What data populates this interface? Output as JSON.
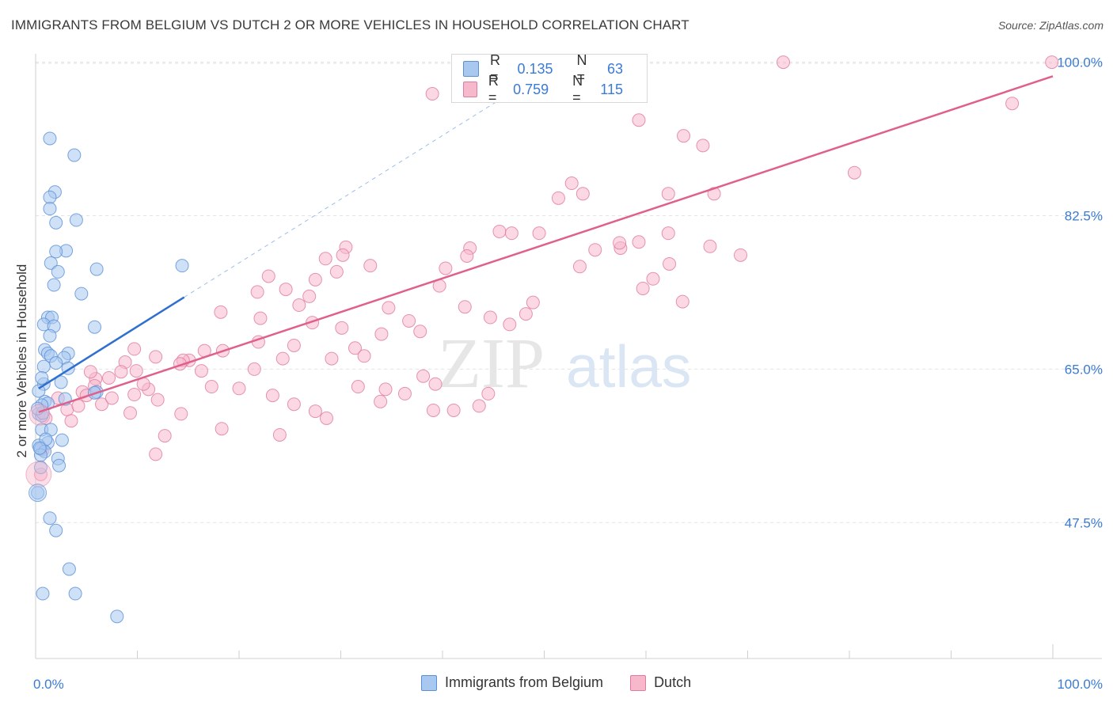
{
  "title": "IMMIGRANTS FROM BELGIUM VS DUTCH 2 OR MORE VEHICLES IN HOUSEHOLD CORRELATION CHART",
  "source": "Source: ZipAtlas.com",
  "watermark": "ZIPatlas",
  "legend": {
    "r_label": "R =",
    "n_label": "N =",
    "series": [
      {
        "name": "Immigrants from Belgium",
        "r": "0.135",
        "n": "63",
        "fill": "#a8c8f0",
        "stroke": "#5b8fd6",
        "line": "#2f6fcf"
      },
      {
        "name": "Dutch",
        "r": "0.759",
        "n": "115",
        "fill": "#f7b8cc",
        "stroke": "#e07a9e",
        "line": "#e0608c"
      }
    ]
  },
  "chart_data": {
    "type": "scatter",
    "xlabel": "",
    "ylabel": "2 or more Vehicles in Household",
    "xlim": [
      0,
      100
    ],
    "ylim": [
      32.0,
      101.5
    ],
    "x_tick_labels": [
      "0.0%",
      "100.0%"
    ],
    "y_ticks": [
      47.5,
      65.0,
      82.5,
      100.0
    ],
    "y_tick_labels": [
      "47.5%",
      "65.0%",
      "82.5%",
      "100.0%"
    ],
    "series": [
      {
        "name": "Immigrants from Belgium",
        "points": [
          [
            1.4,
            91.3
          ],
          [
            3.8,
            89.4
          ],
          [
            1.9,
            85.2
          ],
          [
            1.4,
            84.6
          ],
          [
            1.4,
            83.3
          ],
          [
            4.0,
            82.0
          ],
          [
            2.0,
            81.7
          ],
          [
            3.0,
            78.5
          ],
          [
            2.0,
            78.4
          ],
          [
            1.5,
            77.1
          ],
          [
            6.0,
            76.4
          ],
          [
            2.2,
            76.1
          ],
          [
            1.8,
            74.6
          ],
          [
            4.5,
            73.6
          ],
          [
            1.2,
            70.9
          ],
          [
            1.6,
            70.9
          ],
          [
            0.8,
            70.1
          ],
          [
            1.8,
            69.9
          ],
          [
            5.8,
            69.8
          ],
          [
            1.4,
            68.8
          ],
          [
            0.9,
            67.2
          ],
          [
            1.2,
            66.8
          ],
          [
            3.2,
            66.8
          ],
          [
            1.5,
            66.5
          ],
          [
            2.8,
            66.3
          ],
          [
            0.8,
            65.3
          ],
          [
            3.2,
            65.1
          ],
          [
            2.5,
            63.5
          ],
          [
            0.8,
            63.3
          ],
          [
            6.0,
            62.4
          ],
          [
            5.8,
            62.3
          ],
          [
            2.9,
            61.6
          ],
          [
            0.9,
            61.3
          ],
          [
            1.2,
            61.1
          ],
          [
            0.6,
            60.9
          ],
          [
            0.3,
            59.9
          ],
          [
            0.6,
            59.7
          ],
          [
            0.6,
            58.1
          ],
          [
            1.5,
            58.1
          ],
          [
            2.6,
            56.9
          ],
          [
            1.2,
            56.6
          ],
          [
            0.3,
            56.3
          ],
          [
            0.5,
            55.9
          ],
          [
            0.9,
            55.6
          ],
          [
            0.5,
            55.2
          ],
          [
            2.2,
            54.8
          ],
          [
            2.3,
            54.0
          ],
          [
            0.5,
            53.8
          ],
          [
            0.2,
            50.9
          ],
          [
            1.4,
            48.0
          ],
          [
            2.0,
            46.6
          ],
          [
            3.3,
            42.2
          ],
          [
            0.7,
            39.4
          ],
          [
            3.9,
            39.4
          ],
          [
            8.0,
            36.8
          ],
          [
            14.4,
            76.8
          ],
          [
            0.3,
            62.5
          ],
          [
            0.7,
            60.0
          ],
          [
            1.0,
            57.0
          ],
          [
            0.4,
            56.0
          ],
          [
            0.2,
            60.5
          ],
          [
            0.6,
            64.0
          ],
          [
            2.0,
            65.7
          ]
        ]
      },
      {
        "name": "Dutch",
        "points": [
          [
            73.5,
            100.0
          ],
          [
            99.9,
            100.0
          ],
          [
            39.0,
            96.4
          ],
          [
            59.3,
            93.4
          ],
          [
            96.0,
            95.3
          ],
          [
            63.7,
            91.6
          ],
          [
            65.6,
            90.5
          ],
          [
            80.5,
            87.4
          ],
          [
            51.4,
            84.5
          ],
          [
            59.3,
            79.5
          ],
          [
            52.7,
            86.2
          ],
          [
            62.2,
            85.0
          ],
          [
            53.8,
            85.0
          ],
          [
            66.7,
            85.0
          ],
          [
            62.2,
            80.5
          ],
          [
            66.3,
            79.0
          ],
          [
            45.6,
            80.7
          ],
          [
            46.8,
            80.5
          ],
          [
            57.5,
            78.8
          ],
          [
            42.7,
            78.8
          ],
          [
            49.5,
            80.5
          ],
          [
            53.5,
            76.7
          ],
          [
            57.4,
            79.4
          ],
          [
            55.0,
            78.6
          ],
          [
            42.4,
            77.9
          ],
          [
            60.7,
            75.3
          ],
          [
            40.3,
            76.5
          ],
          [
            62.3,
            77.0
          ],
          [
            69.3,
            78.0
          ],
          [
            63.6,
            72.7
          ],
          [
            59.7,
            74.2
          ],
          [
            32.9,
            76.8
          ],
          [
            30.5,
            78.9
          ],
          [
            30.2,
            78.0
          ],
          [
            28.5,
            77.6
          ],
          [
            29.6,
            76.1
          ],
          [
            27.5,
            75.2
          ],
          [
            22.9,
            75.6
          ],
          [
            24.6,
            74.1
          ],
          [
            21.8,
            73.8
          ],
          [
            26.9,
            73.3
          ],
          [
            25.9,
            72.3
          ],
          [
            34.7,
            72.0
          ],
          [
            39.7,
            74.5
          ],
          [
            42.2,
            72.1
          ],
          [
            44.7,
            70.9
          ],
          [
            48.9,
            72.6
          ],
          [
            48.2,
            71.3
          ],
          [
            46.6,
            70.1
          ],
          [
            36.7,
            70.5
          ],
          [
            37.8,
            69.3
          ],
          [
            34.0,
            69.0
          ],
          [
            30.1,
            69.7
          ],
          [
            27.2,
            70.3
          ],
          [
            22.1,
            70.8
          ],
          [
            18.2,
            71.5
          ],
          [
            21.9,
            68.1
          ],
          [
            25.4,
            67.7
          ],
          [
            31.4,
            67.4
          ],
          [
            32.3,
            66.5
          ],
          [
            29.1,
            66.2
          ],
          [
            24.3,
            66.2
          ],
          [
            21.5,
            65.0
          ],
          [
            18.4,
            67.1
          ],
          [
            16.6,
            67.1
          ],
          [
            15.1,
            66.0
          ],
          [
            14.5,
            66.0
          ],
          [
            14.2,
            65.6
          ],
          [
            11.8,
            66.4
          ],
          [
            9.7,
            67.3
          ],
          [
            8.8,
            65.8
          ],
          [
            9.9,
            64.8
          ],
          [
            8.4,
            64.7
          ],
          [
            7.2,
            64.0
          ],
          [
            5.9,
            63.9
          ],
          [
            5.4,
            64.7
          ],
          [
            5.8,
            63.1
          ],
          [
            4.6,
            62.4
          ],
          [
            3.1,
            60.4
          ],
          [
            2.2,
            61.7
          ],
          [
            1.0,
            59.4
          ],
          [
            0.7,
            55.8
          ],
          [
            0.5,
            53.0
          ],
          [
            11.1,
            62.7
          ],
          [
            12.0,
            61.5
          ],
          [
            9.7,
            62.1
          ],
          [
            14.3,
            59.9
          ],
          [
            12.7,
            57.4
          ],
          [
            11.8,
            55.3
          ],
          [
            20.0,
            62.8
          ],
          [
            23.3,
            62.0
          ],
          [
            25.4,
            61.0
          ],
          [
            28.6,
            59.4
          ],
          [
            31.7,
            63.0
          ],
          [
            34.4,
            62.7
          ],
          [
            27.5,
            60.2
          ],
          [
            36.3,
            62.2
          ],
          [
            44.5,
            62.2
          ],
          [
            43.6,
            60.8
          ],
          [
            38.1,
            64.2
          ],
          [
            39.3,
            63.3
          ],
          [
            33.9,
            61.3
          ],
          [
            39.1,
            60.3
          ],
          [
            41.1,
            60.3
          ],
          [
            9.3,
            60.0
          ],
          [
            16.3,
            64.8
          ],
          [
            4.2,
            60.8
          ],
          [
            10.6,
            63.3
          ],
          [
            17.3,
            63.0
          ],
          [
            5.0,
            62.0
          ],
          [
            6.5,
            61.0
          ],
          [
            7.5,
            61.7
          ],
          [
            24.0,
            57.5
          ],
          [
            18.3,
            58.2
          ],
          [
            3.5,
            59.1
          ]
        ]
      }
    ],
    "trend_lines": [
      {
        "series": "Immigrants from Belgium",
        "from": [
          0.3,
          62.8
        ],
        "to": [
          14.6,
          73.2
        ],
        "dashed_to": [
          46.0,
          96.0
        ]
      },
      {
        "series": "Dutch",
        "from": [
          0.3,
          60.1
        ],
        "to": [
          100.0,
          98.4
        ]
      }
    ]
  }
}
